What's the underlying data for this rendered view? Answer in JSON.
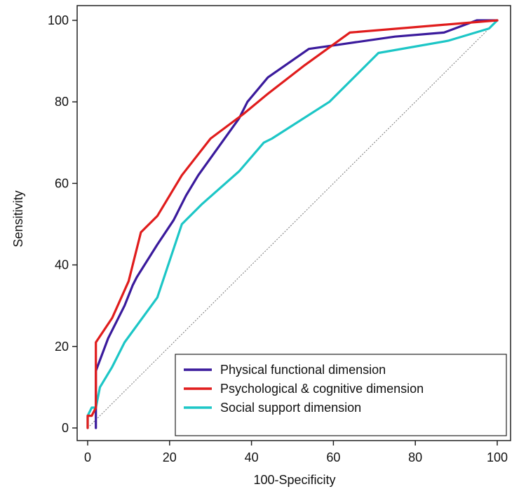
{
  "chart_data": {
    "type": "line",
    "title": "",
    "xlabel": "100-Specificity",
    "ylabel": "Sensitivity",
    "xlim": [
      0,
      100
    ],
    "ylim": [
      0,
      100
    ],
    "xticks": [
      0,
      20,
      40,
      60,
      80,
      100
    ],
    "yticks": [
      0,
      20,
      40,
      60,
      80,
      100
    ],
    "legend_position": "bottom-right",
    "diagonal_reference": true,
    "series": [
      {
        "name": "Physical functional dimension",
        "color": "#3a1a9c",
        "points": [
          [
            2,
            0
          ],
          [
            2,
            14
          ],
          [
            5,
            22
          ],
          [
            9,
            30
          ],
          [
            11,
            35
          ],
          [
            12,
            37
          ],
          [
            17,
            45
          ],
          [
            21,
            51
          ],
          [
            24,
            57
          ],
          [
            27,
            62
          ],
          [
            37,
            76
          ],
          [
            39,
            80
          ],
          [
            44,
            86
          ],
          [
            54,
            93
          ],
          [
            61,
            94
          ],
          [
            75,
            96
          ],
          [
            87,
            97
          ],
          [
            95,
            100
          ],
          [
            100,
            100
          ]
        ]
      },
      {
        "name": "Psychological & cognitive dimension",
        "color": "#e01c1c",
        "points": [
          [
            0,
            0
          ],
          [
            0,
            3
          ],
          [
            1,
            3
          ],
          [
            2,
            5
          ],
          [
            2,
            21
          ],
          [
            6,
            27
          ],
          [
            10,
            36
          ],
          [
            13,
            48
          ],
          [
            17,
            52
          ],
          [
            23,
            62
          ],
          [
            30,
            71
          ],
          [
            38,
            77
          ],
          [
            44,
            82
          ],
          [
            53,
            89
          ],
          [
            64,
            97
          ],
          [
            100,
            100
          ]
        ]
      },
      {
        "name": "Social support dimension",
        "color": "#1cc6c6",
        "points": [
          [
            0,
            0
          ],
          [
            0,
            3
          ],
          [
            1,
            5
          ],
          [
            2,
            5
          ],
          [
            3,
            10
          ],
          [
            6,
            15
          ],
          [
            9,
            21
          ],
          [
            17,
            32
          ],
          [
            23,
            50
          ],
          [
            28,
            55
          ],
          [
            37,
            63
          ],
          [
            43,
            70
          ],
          [
            45,
            71
          ],
          [
            59,
            80
          ],
          [
            71,
            92
          ],
          [
            88,
            95
          ],
          [
            98,
            98
          ],
          [
            100,
            100
          ]
        ]
      }
    ]
  }
}
